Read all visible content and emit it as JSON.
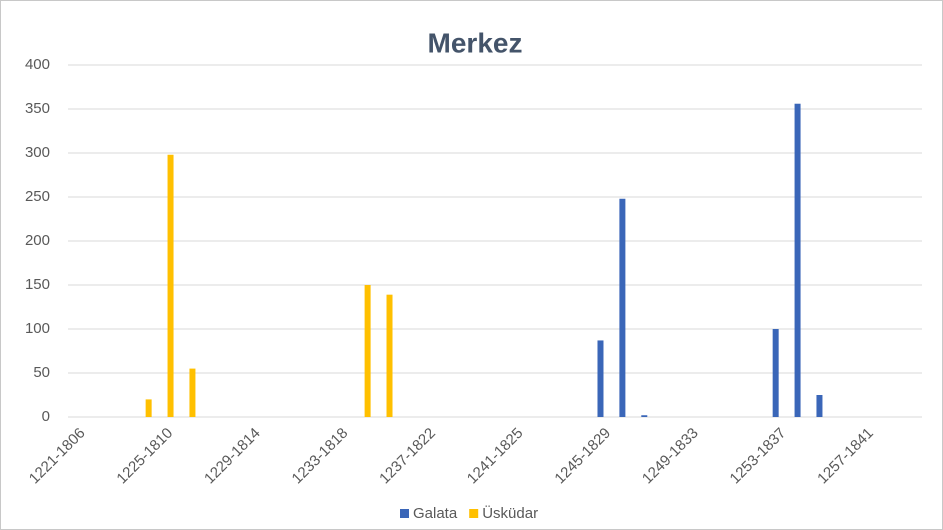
{
  "chart_data": {
    "type": "bar",
    "title": "Merkez",
    "categories": [
      "1221-1806",
      null,
      null,
      null,
      "1225-1810",
      null,
      null,
      null,
      "1229-1814",
      null,
      null,
      null,
      "1233-1818",
      null,
      null,
      null,
      "1237-1822",
      null,
      null,
      null,
      "1241-1825",
      null,
      null,
      null,
      "1245-1829",
      null,
      null,
      null,
      "1249-1833",
      null,
      null,
      null,
      "1253-1837",
      null,
      null,
      null,
      "1257-1841",
      null,
      null
    ],
    "series": [
      {
        "name": "Galata",
        "color": "#3a66b8",
        "values": [
          null,
          null,
          null,
          null,
          null,
          null,
          null,
          null,
          null,
          null,
          null,
          null,
          null,
          null,
          null,
          null,
          null,
          null,
          null,
          null,
          null,
          null,
          null,
          null,
          87,
          248,
          2,
          null,
          null,
          null,
          null,
          null,
          100,
          356,
          25,
          null,
          null,
          null,
          null
        ]
      },
      {
        "name": "Üsküdar",
        "color": "#ffc000",
        "values": [
          null,
          null,
          null,
          20,
          298,
          55,
          null,
          null,
          null,
          null,
          null,
          null,
          null,
          150,
          139,
          null,
          null,
          null,
          null,
          null,
          null,
          null,
          null,
          null,
          null,
          null,
          null,
          null,
          null,
          null,
          null,
          null,
          null,
          null,
          null,
          null,
          null,
          null,
          null
        ]
      }
    ],
    "ylim": [
      0,
      400
    ],
    "yticks": [
      0,
      50,
      100,
      150,
      200,
      250,
      300,
      350,
      400
    ],
    "grid": true,
    "legend": "bottom"
  }
}
